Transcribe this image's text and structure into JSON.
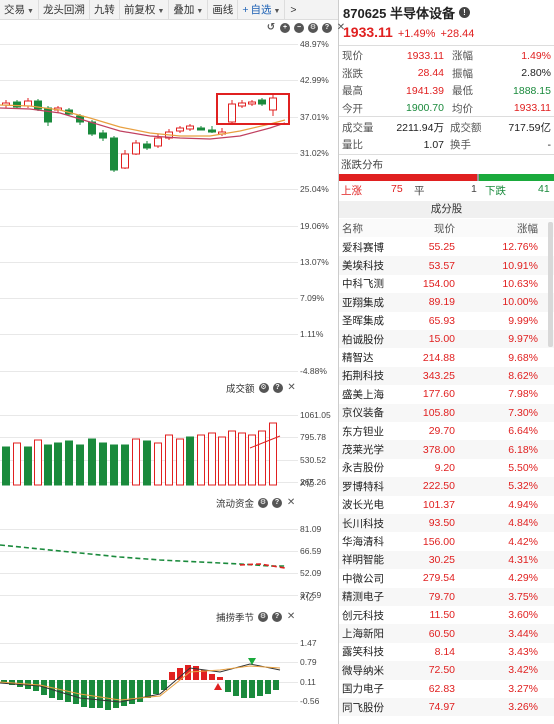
{
  "toolbar": {
    "items": [
      "交易",
      "龙头回溯",
      "九转",
      "前复权",
      "叠加",
      "画线",
      "自选"
    ],
    "add_prefix": "+",
    "more": ">"
  },
  "price_panel": {
    "y_ticks": [
      "48.97%",
      "42.99%",
      "37.01%",
      "31.02%",
      "25.04%",
      "19.06%",
      "13.07%",
      "7.09%",
      "1.11%",
      "-4.88%"
    ],
    "controls": [
      "refresh-icon",
      "plus-icon",
      "minus-icon",
      "gear-icon",
      "help-icon",
      "close-icon"
    ]
  },
  "volume_panel": {
    "title": "成交额",
    "y_ticks": [
      "1061.05",
      "795.78",
      "530.52",
      "265.26"
    ],
    "unit": "X亿"
  },
  "flow_panel": {
    "title": "流动资金",
    "y_ticks": [
      "81.09",
      "66.59",
      "52.09",
      "37.59"
    ],
    "unit": "X亿"
  },
  "season_panel": {
    "title": "捕捞季节",
    "y_ticks": [
      "1.47",
      "0.79",
      "0.11",
      "-0.56"
    ]
  },
  "header": {
    "code": "870625 半导体设备",
    "price": "1933.11",
    "change_pct": "+1.49%",
    "change_abs": "+28.44"
  },
  "quote": [
    {
      "l1": "现价",
      "v1": "1933.11",
      "l2": "涨幅",
      "v2": "1.49%",
      "c1": "red",
      "c2": "red"
    },
    {
      "l1": "涨跌",
      "v1": "28.44",
      "l2": "振幅",
      "v2": "2.80%",
      "c1": "red",
      "c2": "dark"
    },
    {
      "l1": "最高",
      "v1": "1941.39",
      "l2": "最低",
      "v2": "1888.15",
      "c1": "red",
      "c2": "grn"
    },
    {
      "l1": "今开",
      "v1": "1900.70",
      "l2": "均价",
      "v1c": "",
      "v2": "1933.11",
      "c1": "grn",
      "c2": "red"
    }
  ],
  "turnover": [
    {
      "l1": "成交量",
      "v1": "2211.94万",
      "l2": "成交额",
      "v2": "717.59亿"
    },
    {
      "l1": "量比",
      "v1": "1.07",
      "l2": "换手",
      "v2": "-"
    }
  ],
  "dist": {
    "title": "涨跌分布",
    "up_label": "上涨",
    "up": 75,
    "flat_label": "平",
    "flat": 1,
    "down_label": "下跌",
    "down": 41
  },
  "constituents": {
    "title": "成分股",
    "headers": [
      "名称",
      "现价",
      "涨幅"
    ],
    "rows": [
      [
        "爱科赛博",
        "55.25",
        "12.76%"
      ],
      [
        "美埃科技",
        "53.57",
        "10.91%"
      ],
      [
        "中科飞测",
        "154.00",
        "10.63%"
      ],
      [
        "亚翔集成",
        "89.19",
        "10.00%"
      ],
      [
        "圣晖集成",
        "65.93",
        "9.99%"
      ],
      [
        "柏诚股份",
        "15.00",
        "9.97%"
      ],
      [
        "精智达",
        "214.88",
        "9.68%"
      ],
      [
        "拓荆科技",
        "343.25",
        "8.62%"
      ],
      [
        "盛美上海",
        "177.60",
        "7.98%"
      ],
      [
        "京仪装备",
        "105.80",
        "7.30%"
      ],
      [
        "东方钽业",
        "29.70",
        "6.64%"
      ],
      [
        "茂莱光学",
        "378.00",
        "6.18%"
      ],
      [
        "永吉股份",
        "9.20",
        "5.50%"
      ],
      [
        "罗博特科",
        "222.50",
        "5.32%"
      ],
      [
        "波长光电",
        "101.37",
        "4.94%"
      ],
      [
        "长川科技",
        "93.50",
        "4.84%"
      ],
      [
        "华海清科",
        "156.00",
        "4.42%"
      ],
      [
        "祥明智能",
        "30.25",
        "4.31%"
      ],
      [
        "中微公司",
        "279.54",
        "4.29%"
      ],
      [
        "精测电子",
        "79.70",
        "3.75%"
      ],
      [
        "创元科技",
        "11.50",
        "3.60%"
      ],
      [
        "上海新阳",
        "60.50",
        "3.44%"
      ],
      [
        "露笑科技",
        "8.14",
        "3.43%"
      ],
      [
        "微导纳米",
        "72.50",
        "3.42%"
      ],
      [
        "国力电子",
        "62.83",
        "3.27%"
      ],
      [
        "同飞股份",
        "74.97",
        "3.26%"
      ]
    ]
  },
  "colors": {
    "up": "#e02020",
    "down": "#1a8a3c",
    "ma1": "#e8a040",
    "ma2": "#c04060"
  }
}
